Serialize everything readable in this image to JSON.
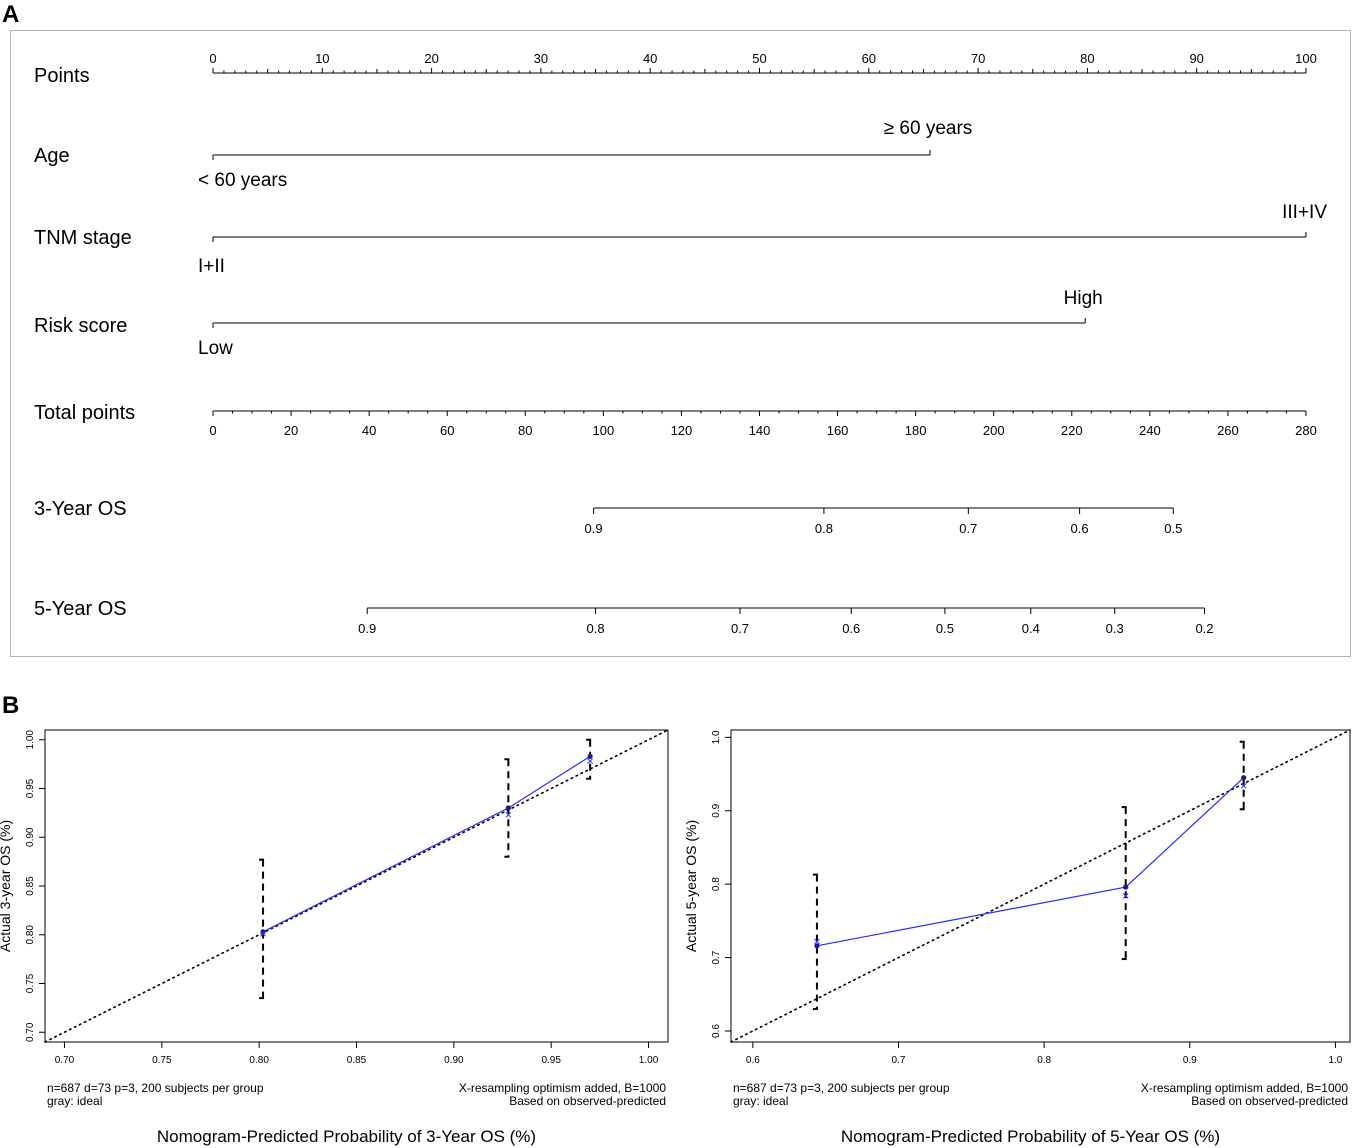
{
  "panel_labels": {
    "a": "A",
    "b": "B"
  },
  "colors": {
    "axis": "#000000",
    "calibration_line": "#2a2aff",
    "point": "#1a1a8c",
    "panel_border": "#b4b4b4",
    "ideal_line": "#000000"
  },
  "chart_data": [
    {
      "type": "nomogram",
      "panel": "A",
      "rows": [
        {
          "label": "Points",
          "kind": "axis",
          "min": 0,
          "max": 100,
          "ticks": [
            0,
            10,
            20,
            30,
            40,
            50,
            60,
            70,
            80,
            90,
            100
          ],
          "tick_labels": [
            "0",
            "10",
            "20",
            "30",
            "40",
            "50",
            "60",
            "70",
            "80",
            "90",
            "100"
          ],
          "minor_step": 1
        },
        {
          "label": "Age",
          "kind": "variable",
          "levels": [
            {
              "label": "< 60 years",
              "points": 0
            },
            {
              "label": "≥ 60 years",
              "points": 65.6
            }
          ]
        },
        {
          "label": "TNM stage",
          "kind": "variable",
          "levels": [
            {
              "label": "I+II",
              "points": 0
            },
            {
              "label": "III+IV",
              "points": 100
            }
          ]
        },
        {
          "label": "Risk score",
          "kind": "variable",
          "levels": [
            {
              "label": "Low",
              "points": 0
            },
            {
              "label": "High",
              "points": 79.8
            }
          ]
        },
        {
          "label": "Total points",
          "kind": "axis",
          "min": 0,
          "max": 280,
          "ticks": [
            0,
            20,
            40,
            60,
            80,
            100,
            120,
            140,
            160,
            180,
            200,
            220,
            240,
            260,
            280
          ],
          "tick_labels": [
            "0",
            "20",
            "40",
            "60",
            "80",
            "100",
            "120",
            "140",
            "160",
            "180",
            "200",
            "220",
            "240",
            "260",
            "280"
          ],
          "minor_step": 5
        },
        {
          "label": "3-Year OS",
          "kind": "probability",
          "range_total_points": [
            97.5,
            246
          ],
          "ticks": [
            {
              "label": "0.9",
              "total_points": 97.5
            },
            {
              "label": "0.8",
              "total_points": 156.5
            },
            {
              "label": "0.7",
              "total_points": 193.5
            },
            {
              "label": "0.6",
              "total_points": 222
            },
            {
              "label": "0.5",
              "total_points": 246
            }
          ]
        },
        {
          "label": "5-Year OS",
          "kind": "probability",
          "range_total_points": [
            39.5,
            254
          ],
          "ticks": [
            {
              "label": "0.9",
              "total_points": 39.5
            },
            {
              "label": "0.8",
              "total_points": 98
            },
            {
              "label": "0.7",
              "total_points": 135
            },
            {
              "label": "0.6",
              "total_points": 163.5
            },
            {
              "label": "0.5",
              "total_points": 187.5
            },
            {
              "label": "0.4",
              "total_points": 209.5
            },
            {
              "label": "0.3",
              "total_points": 231
            },
            {
              "label": "0.2",
              "total_points": 254
            }
          ]
        }
      ]
    },
    {
      "type": "line",
      "panel": "B-left",
      "xlabel": "Nomogram-Predicted Probability of 3-Year OS (%)",
      "ylabel": "Actual 3-year OS (%)",
      "xlim": [
        0.69,
        1.01
      ],
      "ylim": [
        0.69,
        1.01
      ],
      "xticks": [
        0.7,
        0.75,
        0.8,
        0.85,
        0.9,
        0.95,
        1.0
      ],
      "xtick_labels": [
        "0.70",
        "0.75",
        "0.80",
        "0.85",
        "0.90",
        "0.95",
        "1.00"
      ],
      "yticks": [
        0.7,
        0.75,
        0.8,
        0.85,
        0.9,
        0.95,
        1.0
      ],
      "ytick_labels": [
        "0.70",
        "0.75",
        "0.80",
        "0.85",
        "0.90",
        "0.95",
        "1.00"
      ],
      "grid": false,
      "ideal_line": true,
      "points": [
        {
          "x": 0.802,
          "y": 0.803,
          "y_corrected": 0.801,
          "ci": [
            0.735,
            0.877
          ]
        },
        {
          "x": 0.928,
          "y": 0.93,
          "y_corrected": 0.923,
          "ci": [
            0.88,
            0.98
          ]
        },
        {
          "x": 0.97,
          "y": 0.983,
          "y_corrected": 0.978,
          "ci": [
            0.96,
            1.0
          ]
        }
      ],
      "footnote_left": [
        "n=687 d=73 p=3, 200 subjects per group",
        "gray: ideal"
      ],
      "footnote_right": [
        "X-resampling optimism added, B=1000",
        "Based on observed-predicted"
      ]
    },
    {
      "type": "line",
      "panel": "B-right",
      "xlabel": "Nomogram-Predicted Probability of 5-Year OS (%)",
      "ylabel": "Actual 5-year OS (%)",
      "xlim": [
        0.585,
        1.01
      ],
      "ylim": [
        0.585,
        1.01
      ],
      "xticks": [
        0.6,
        0.7,
        0.8,
        0.9,
        1.0
      ],
      "xtick_labels": [
        "0.6",
        "0.7",
        "0.8",
        "0.9",
        "1.0"
      ],
      "yticks": [
        0.6,
        0.7,
        0.8,
        0.9,
        1.0
      ],
      "ytick_labels": [
        "0.6",
        "0.7",
        "0.8",
        "0.9",
        "1.0"
      ],
      "grid": false,
      "ideal_line": true,
      "points": [
        {
          "x": 0.644,
          "y": 0.716,
          "y_corrected": 0.722,
          "ci": [
            0.63,
            0.813
          ]
        },
        {
          "x": 0.856,
          "y": 0.796,
          "y_corrected": 0.784,
          "ci": [
            0.698,
            0.905
          ]
        },
        {
          "x": 0.937,
          "y": 0.945,
          "y_corrected": 0.934,
          "ci": [
            0.902,
            0.994
          ]
        }
      ],
      "footnote_left": [
        "n=687 d=73 p=3, 200 subjects per group",
        "gray: ideal"
      ],
      "footnote_right": [
        "X-resampling optimism added, B=1000",
        "Based on observed-predicted"
      ]
    }
  ]
}
